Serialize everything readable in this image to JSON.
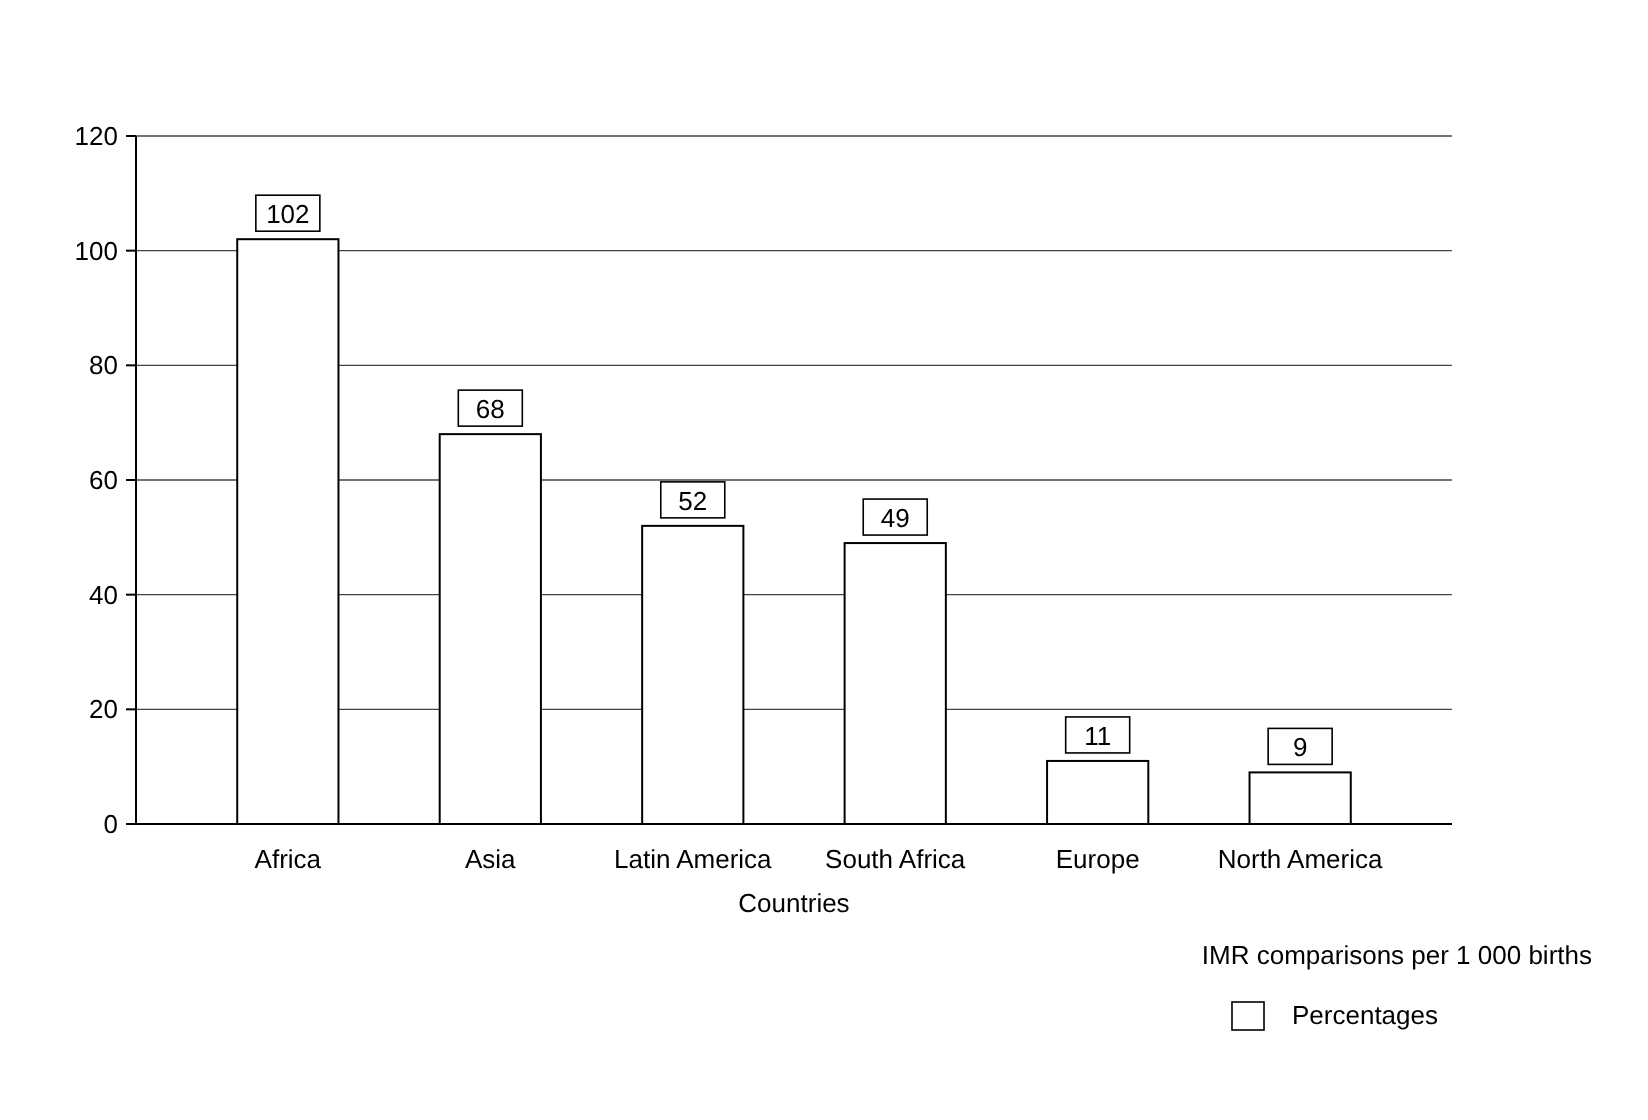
{
  "chart_data": {
    "type": "bar",
    "xlabel": "Countries",
    "categories": [
      "Africa",
      "Asia",
      "Latin America",
      "South Africa",
      "Europe",
      "North America"
    ],
    "series": [
      {
        "name": "Percentages",
        "color": "#ffffff",
        "values": [
          102,
          68,
          52,
          49,
          11,
          9
        ]
      }
    ],
    "ylim": [
      0,
      120
    ],
    "yticks": [
      0,
      20,
      40,
      60,
      80,
      100,
      120
    ],
    "grid": "y",
    "data_labels": true,
    "legend": "bottom right",
    "annotations": [
      "IMR comparisons per 1 000 births"
    ]
  }
}
